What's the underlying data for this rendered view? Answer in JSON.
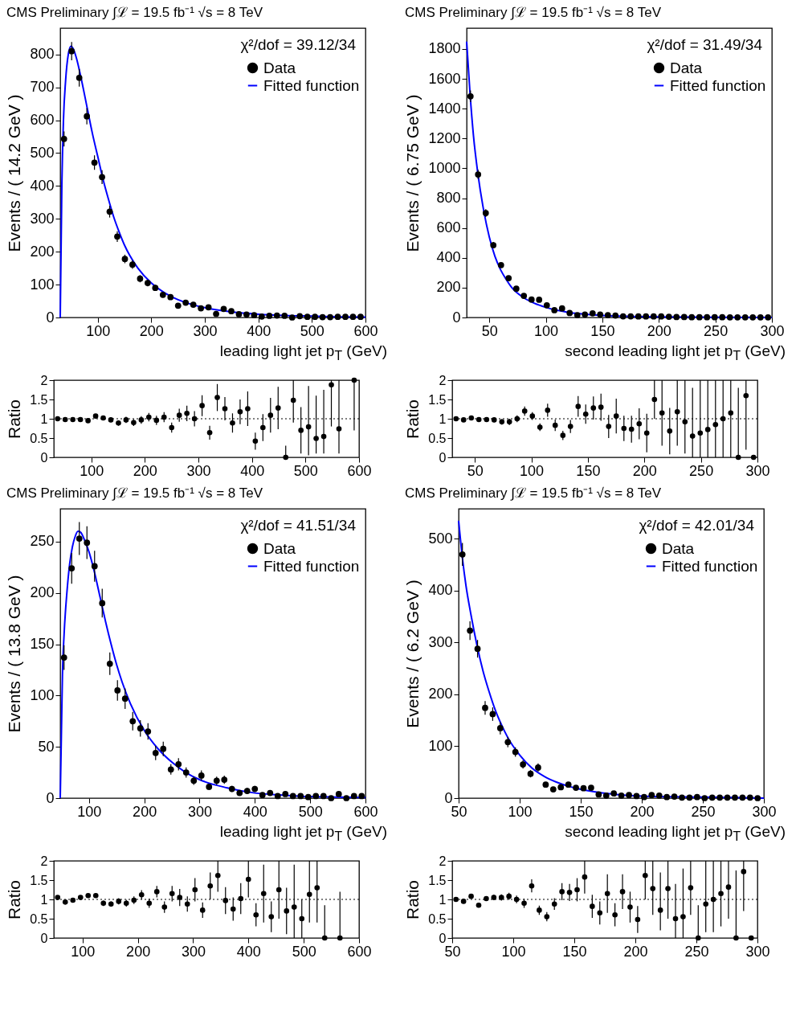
{
  "chart_data": [
    {
      "type": "scatter",
      "title": "CMS Preliminary  ∫ℒ = 19.5 fb⁻¹    √s = 8 TeV",
      "xlabel": "leading light jet p$_{T}$ (GeV)",
      "ylabel": "Events / ( 14.2 GeV )",
      "annotations": [
        "χ²/dof = 39.12/34"
      ],
      "legend": "top right",
      "marker": "circle",
      "xlim": [
        30,
        600
      ],
      "xticks": [
        100,
        200,
        300,
        400,
        500,
        600
      ],
      "ylim": [
        0,
        880
      ],
      "yticks": [
        0,
        100,
        200,
        300,
        400,
        500,
        600,
        700,
        800
      ],
      "x": [
        37.1,
        51.3,
        65.5,
        79.7,
        93.9,
        108.1,
        122.3,
        136.5,
        150.7,
        164.9,
        179.1,
        193.3,
        207.5,
        221.7,
        235.9,
        250.1,
        264.3,
        278.5,
        292.7,
        306.9,
        321.1,
        335.3,
        349.5,
        363.7,
        377.9,
        392.1,
        406.3,
        420.5,
        434.7,
        448.9,
        463.1,
        477.3,
        491.5,
        505.7,
        519.9,
        534.1,
        548.3,
        562.5,
        576.7,
        590.9
      ],
      "series": [
        {
          "name": "Data",
          "color": "#000000",
          "values": [
            543,
            810,
            729,
            612,
            471,
            427,
            322,
            246,
            178,
            161,
            118,
            105,
            90,
            69,
            62,
            36,
            45,
            39,
            28,
            31,
            11,
            26,
            19,
            10,
            9,
            7,
            3,
            5,
            6,
            5,
            0,
            4,
            2,
            2,
            1,
            1,
            2,
            2,
            2,
            2
          ],
          "errors": [
            23,
            28,
            27,
            25,
            22,
            21,
            18,
            16,
            13,
            13,
            11,
            10,
            9,
            8,
            8,
            6,
            7,
            6,
            5,
            6,
            3,
            5,
            4,
            3,
            3,
            3,
            null,
            null,
            null,
            null,
            null,
            null,
            null,
            null,
            null,
            null,
            null,
            null,
            null,
            null
          ]
        },
        {
          "name": "Fitted function",
          "type": "line",
          "color": "#0000ff",
          "marker": "none",
          "x": [
            30,
            33,
            36,
            40,
            45,
            50,
            55,
            60,
            70,
            80,
            90,
            100,
            110,
            120,
            130,
            140,
            150,
            160,
            175,
            200,
            225,
            250,
            275,
            300,
            350,
            400,
            450,
            500,
            550,
            600
          ],
          "values": [
            0,
            400,
            600,
            720,
            800,
            825,
            815,
            790,
            720,
            640,
            560,
            490,
            420,
            360,
            305,
            260,
            220,
            188,
            150,
            105,
            75,
            54,
            40,
            30,
            17,
            10,
            6,
            4,
            2,
            1
          ]
        }
      ]
    },
    {
      "type": "scatter",
      "title": "CMS Preliminary  ∫ℒ = 19.5 fb⁻¹    √s = 8 TeV",
      "xlabel": "second leading light jet p$_{T}$ (GeV)",
      "ylabel": "Events / ( 6.75 GeV )",
      "annotations": [
        "χ²/dof = 31.49/34"
      ],
      "legend": "top right",
      "marker": "circle",
      "xlim": [
        30,
        300
      ],
      "xticks": [
        50,
        100,
        150,
        200,
        250,
        300
      ],
      "ylim": [
        0,
        1940
      ],
      "yticks": [
        0,
        200,
        400,
        600,
        800,
        1000,
        1200,
        1400,
        1600,
        1800
      ],
      "x": [
        33.4,
        40.1,
        46.9,
        53.6,
        60.4,
        67.1,
        73.9,
        80.6,
        87.4,
        94.1,
        100.9,
        107.6,
        114.4,
        121.1,
        127.9,
        134.6,
        141.4,
        148.1,
        154.9,
        161.6,
        168.4,
        175.1,
        181.9,
        188.6,
        195.4,
        202.1,
        208.9,
        215.6,
        222.4,
        229.1,
        235.9,
        242.6,
        249.4,
        256.1,
        262.9,
        269.6,
        276.4,
        283.1,
        289.9,
        296.6
      ],
      "series": [
        {
          "name": "Data",
          "color": "#000000",
          "values": [
            1483,
            959,
            700,
            485,
            351,
            264,
            193,
            145,
            120,
            119,
            82,
            49,
            61,
            30,
            16,
            20,
            28,
            20,
            16,
            13,
            8,
            8,
            7,
            7,
            7,
            7,
            5,
            3,
            3,
            2,
            2,
            2,
            2,
            2,
            1,
            1,
            1,
            1,
            1,
            1
          ],
          "errors": [
            39,
            31,
            26,
            22,
            null,
            null,
            null,
            null,
            null,
            null,
            null,
            null,
            null,
            null,
            null,
            null,
            null,
            null,
            null,
            null,
            null,
            null,
            null,
            null,
            null,
            null,
            null,
            null,
            null,
            null,
            null,
            null,
            null,
            null,
            null,
            null,
            null,
            null,
            null,
            null
          ]
        },
        {
          "name": "Fitted function",
          "type": "line",
          "color": "#0000ff",
          "marker": "none",
          "x": [
            30,
            33,
            36,
            40,
            45,
            50,
            55,
            60,
            65,
            70,
            80,
            90,
            100,
            110,
            120,
            130,
            150,
            175,
            200,
            250,
            300
          ],
          "values": [
            1850,
            1500,
            1220,
            960,
            720,
            540,
            410,
            320,
            255,
            200,
            135,
            95,
            68,
            48,
            34,
            25,
            13,
            7,
            4,
            2,
            0
          ]
        }
      ]
    },
    {
      "type": "scatter",
      "ylabel": "Ratio",
      "xlim": [
        30,
        600
      ],
      "xticks": [
        100,
        200,
        300,
        400,
        500,
        600
      ],
      "ylim": [
        0,
        2
      ],
      "yticks": [
        0,
        0.5,
        1,
        1.5,
        2
      ],
      "ref_lines": [
        {
          "axis": "y",
          "value": 1,
          "line_style": "dotted",
          "color": "#000000"
        }
      ],
      "x": [
        37.1,
        51.3,
        65.5,
        79.7,
        93.9,
        108.1,
        122.3,
        136.5,
        150.7,
        164.9,
        179.1,
        193.3,
        207.5,
        221.7,
        235.9,
        250.1,
        264.3,
        278.5,
        292.7,
        306.9,
        321.1,
        335.3,
        349.5,
        363.7,
        377.9,
        392.1,
        406.3,
        420.5,
        434.7,
        448.9,
        463.1,
        477.3,
        491.5,
        505.7,
        519.9,
        534.1,
        548.3,
        562.5,
        576.7,
        590.9
      ],
      "values": [
        1.0,
        0.98,
        0.98,
        0.98,
        0.95,
        1.07,
        1.02,
        0.97,
        0.89,
        0.97,
        0.9,
        0.97,
        1.04,
        0.96,
        1.04,
        0.77,
        1.09,
        1.14,
        1.0,
        1.34,
        0.64,
        1.55,
        1.26,
        0.89,
        1.18,
        1.26,
        0.42,
        0.77,
        1.09,
        1.28,
        0,
        1.48,
        0.7,
        0.79,
        0.49,
        0.54,
        1.88,
        0.74,
        null,
        2.0
      ],
      "errors": [
        0.04,
        0.03,
        0.03,
        0.04,
        0.04,
        0.05,
        0.05,
        0.06,
        0.07,
        0.08,
        0.09,
        0.1,
        0.11,
        0.12,
        0.13,
        0.13,
        0.17,
        0.2,
        0.2,
        0.27,
        0.18,
        0.35,
        0.3,
        0.25,
        0.32,
        0.45,
        0.22,
        0.35,
        0.45,
        0.55,
        [
          0,
          0.3
        ],
        [
          0.9,
          2
        ],
        0.6,
        [
          0.05,
          1.85
        ],
        [
          0.1,
          1.6
        ],
        [
          0.1,
          1.75
        ],
        [
          0.8,
          2
        ],
        [
          0.1,
          2
        ],
        null,
        [
          0.7,
          2
        ]
      ],
      "color": "#000000"
    },
    {
      "type": "scatter",
      "ylabel": "Ratio",
      "xlim": [
        30,
        300
      ],
      "xticks": [
        50,
        100,
        150,
        200,
        250,
        300
      ],
      "ylim": [
        0,
        2
      ],
      "yticks": [
        0,
        0.5,
        1,
        1.5,
        2
      ],
      "ref_lines": [
        {
          "axis": "y",
          "value": 1,
          "line_style": "dotted",
          "color": "#000000"
        }
      ],
      "x": [
        33.4,
        40.1,
        46.9,
        53.6,
        60.4,
        67.1,
        73.9,
        80.6,
        87.4,
        94.1,
        100.9,
        107.6,
        114.4,
        121.1,
        127.9,
        134.6,
        141.4,
        148.1,
        154.9,
        161.6,
        168.4,
        175.1,
        181.9,
        188.6,
        195.4,
        202.1,
        208.9,
        215.6,
        222.4,
        229.1,
        235.9,
        242.6,
        249.4,
        256.1,
        262.9,
        269.6,
        276.4,
        283.1,
        289.9,
        296.6
      ],
      "values": [
        1.0,
        0.97,
        1.02,
        0.98,
        0.98,
        0.97,
        0.92,
        0.92,
        1.0,
        1.2,
        1.07,
        0.78,
        1.22,
        0.83,
        0.57,
        0.8,
        1.32,
        1.12,
        1.28,
        1.3,
        0.8,
        1.07,
        0.75,
        0.73,
        0.87,
        0.63,
        1.5,
        1.15,
        0.68,
        1.18,
        0.92,
        0.55,
        0.63,
        0.72,
        0.85,
        1.0,
        1.15,
        0,
        1.6,
        0
      ],
      "errors": [
        0.03,
        0.03,
        0.04,
        0.05,
        0.05,
        0.06,
        0.07,
        0.08,
        0.09,
        0.12,
        0.1,
        0.1,
        0.17,
        0.15,
        0.12,
        0.17,
        0.27,
        0.25,
        0.3,
        0.35,
        0.3,
        0.45,
        0.33,
        0.35,
        0.4,
        0.5,
        0.5,
        [
          0.3,
          2
        ],
        0.6,
        [
          0.3,
          2
        ],
        [
          0.1,
          2
        ],
        [
          0,
          1.8
        ],
        [
          0,
          2
        ],
        [
          0,
          2
        ],
        [
          0,
          2
        ],
        [
          0,
          2
        ],
        [
          0,
          2
        ],
        [
          0,
          1.8
        ],
        [
          0.2,
          2
        ],
        null
      ],
      "color": "#000000"
    },
    {
      "type": "scatter",
      "title": "CMS Preliminary  ∫ℒ = 19.5 fb⁻¹    √s = 8 TeV",
      "xlabel": "leading light jet p$_{T}$ (GeV)",
      "ylabel": "Events / ( 13.8 GeV )",
      "annotations": [
        "χ²/dof = 41.51/34"
      ],
      "legend": "top right",
      "marker": "circle",
      "xlim": [
        48,
        600
      ],
      "xticks": [
        100,
        200,
        300,
        400,
        500,
        600
      ],
      "ylim": [
        0,
        282
      ],
      "yticks": [
        0,
        50,
        100,
        150,
        200,
        250
      ],
      "x": [
        54.9,
        68.7,
        82.5,
        96.3,
        110.1,
        123.9,
        137.7,
        151.5,
        165.3,
        179.1,
        192.9,
        206.7,
        220.5,
        234.3,
        248.1,
        261.9,
        275.7,
        289.5,
        303.3,
        317.1,
        330.9,
        344.7,
        358.5,
        372.3,
        386.1,
        399.9,
        413.7,
        427.5,
        441.3,
        455.1,
        468.9,
        482.7,
        496.5,
        510.3,
        524.1,
        537.9,
        551.7,
        565.5,
        579.3,
        593.1
      ],
      "series": [
        {
          "name": "Data",
          "color": "#000000",
          "values": [
            137,
            224,
            253,
            249,
            226,
            190,
            131,
            105,
            97,
            75,
            68,
            65,
            44,
            48,
            28,
            33,
            25,
            17,
            22,
            11,
            17,
            18,
            9,
            5,
            7,
            9,
            3,
            5,
            2,
            4,
            2,
            2,
            1,
            2,
            2,
            0,
            4,
            0,
            2,
            2
          ],
          "errors": [
            12,
            15,
            16,
            16,
            15,
            14,
            11,
            10,
            10,
            9,
            8,
            8,
            7,
            7,
            5,
            6,
            5,
            4,
            5,
            3,
            4,
            4,
            3,
            2,
            3,
            3,
            2,
            2,
            1,
            2,
            1,
            1,
            1,
            1,
            1,
            null,
            2,
            null,
            1,
            1
          ]
        },
        {
          "name": "Fitted function",
          "type": "line",
          "color": "#0000ff",
          "marker": "none",
          "x": [
            48,
            50,
            52,
            55,
            60,
            65,
            70,
            75,
            80,
            85,
            90,
            100,
            110,
            120,
            130,
            140,
            150,
            160,
            175,
            200,
            225,
            250,
            275,
            300,
            350,
            400,
            450,
            500,
            550,
            600
          ],
          "values": [
            0,
            60,
            120,
            160,
            200,
            228,
            245,
            255,
            260,
            259,
            254,
            240,
            220,
            196,
            172,
            150,
            130,
            113,
            92,
            66,
            48,
            35,
            25,
            18,
            10,
            5,
            3,
            1.5,
            1,
            0.5
          ]
        }
      ]
    },
    {
      "type": "scatter",
      "title": "CMS Preliminary  ∫ℒ = 19.5 fb⁻¹    √s = 8 TeV",
      "xlabel": "second leading light jet p$_{T}$ (GeV)",
      "ylabel": "Events / ( 6.2 GeV )",
      "annotations": [
        "χ²/dof = 42.01/34"
      ],
      "legend": "top right",
      "marker": "circle",
      "xlim": [
        50,
        300
      ],
      "xticks": [
        50,
        100,
        150,
        200,
        250,
        300
      ],
      "ylim": [
        0,
        558
      ],
      "yticks": [
        0,
        100,
        200,
        300,
        400,
        500
      ],
      "x": [
        53.1,
        59.3,
        65.5,
        71.7,
        77.9,
        84.1,
        90.3,
        96.5,
        102.7,
        108.9,
        115.1,
        121.3,
        127.5,
        133.7,
        139.9,
        146.1,
        152.3,
        158.5,
        164.7,
        170.9,
        177.1,
        183.3,
        189.5,
        195.7,
        201.9,
        208.1,
        214.3,
        220.5,
        226.7,
        232.9,
        239.1,
        245.3,
        251.5,
        257.7,
        263.9,
        270.1,
        276.3,
        282.5,
        288.7,
        294.9
      ],
      "series": [
        {
          "name": "Data",
          "color": "#000000",
          "values": [
            470,
            323,
            288,
            174,
            162,
            135,
            108,
            89,
            65,
            47,
            59,
            26,
            17,
            21,
            26,
            20,
            19,
            20,
            7,
            5,
            9,
            5,
            6,
            4,
            2,
            6,
            5,
            2,
            3,
            1,
            1,
            2,
            0,
            1,
            1,
            1,
            1,
            1,
            1,
            0
          ],
          "errors": [
            22,
            18,
            17,
            13,
            13,
            12,
            10,
            9,
            8,
            7,
            8,
            null,
            null,
            null,
            null,
            null,
            null,
            null,
            null,
            null,
            null,
            null,
            null,
            null,
            null,
            null,
            null,
            null,
            null,
            null,
            null,
            null,
            null,
            null,
            null,
            null,
            null,
            null,
            null,
            null
          ]
        },
        {
          "name": "Fitted function",
          "type": "line",
          "color": "#0000ff",
          "marker": "none",
          "x": [
            50,
            53,
            56,
            60,
            65,
            70,
            75,
            80,
            85,
            90,
            100,
            110,
            120,
            130,
            140,
            150,
            175,
            200,
            250,
            300
          ],
          "values": [
            535,
            465,
            410,
            355,
            295,
            245,
            205,
            170,
            142,
            118,
            83,
            58,
            42,
            31,
            23,
            17,
            8,
            4,
            2,
            0
          ]
        }
      ]
    },
    {
      "type": "scatter",
      "ylabel": "Ratio",
      "xlim": [
        48,
        600
      ],
      "xticks": [
        100,
        200,
        300,
        400,
        500,
        600
      ],
      "ylim": [
        0,
        2
      ],
      "yticks": [
        0,
        0.5,
        1,
        1.5,
        2
      ],
      "ref_lines": [
        {
          "axis": "y",
          "value": 1,
          "line_style": "dotted",
          "color": "#000000"
        }
      ],
      "x": [
        54.9,
        68.7,
        82.5,
        96.3,
        110.1,
        123.9,
        137.7,
        151.5,
        165.3,
        179.1,
        192.9,
        206.7,
        220.5,
        234.3,
        248.1,
        261.9,
        275.7,
        289.5,
        303.3,
        317.1,
        330.9,
        344.7,
        358.5,
        372.3,
        386.1,
        399.9,
        413.7,
        427.5,
        441.3,
        455.1,
        468.9,
        482.7,
        496.5,
        510.3,
        524.1,
        537.9,
        551.7,
        565.5
      ],
      "values": [
        1.05,
        0.93,
        0.98,
        1.05,
        1.1,
        1.1,
        0.9,
        0.88,
        0.95,
        0.9,
        0.98,
        1.12,
        0.9,
        1.2,
        0.8,
        1.15,
        1.05,
        0.88,
        1.25,
        0.72,
        1.35,
        1.62,
        0.97,
        0.75,
        1.02,
        1.52,
        0.6,
        1.15,
        0.55,
        1.25,
        0.7,
        0.8,
        0.5,
        1.13,
        1.3,
        0,
        null,
        0
      ],
      "errors": [
        0.05,
        0.04,
        0.04,
        0.05,
        0.05,
        0.06,
        0.07,
        0.07,
        0.08,
        0.09,
        0.1,
        0.12,
        0.12,
        0.15,
        0.15,
        0.2,
        0.22,
        0.2,
        0.3,
        0.2,
        0.35,
        [
          1.2,
          2
        ],
        0.35,
        0.3,
        0.4,
        [
          1.05,
          2
        ],
        0.3,
        0.75,
        0.4,
        [
          0.5,
          2
        ],
        0.6,
        [
          0,
          1.9
        ],
        0.5,
        [
          0.4,
          2
        ],
        [
          0.4,
          2
        ],
        [
          0,
          0.85
        ],
        null,
        [
          0,
          1.2
        ]
      ],
      "color": "#000000"
    },
    {
      "type": "scatter",
      "ylabel": "Ratio",
      "xlim": [
        50,
        300
      ],
      "xticks": [
        50,
        100,
        150,
        200,
        250,
        300
      ],
      "ylim": [
        0,
        2
      ],
      "yticks": [
        0,
        0.5,
        1,
        1.5,
        2
      ],
      "ref_lines": [
        {
          "axis": "y",
          "value": 1,
          "line_style": "dotted",
          "color": "#000000"
        }
      ],
      "x": [
        53.1,
        59.3,
        65.5,
        71.7,
        77.9,
        84.1,
        90.3,
        96.5,
        102.7,
        108.9,
        115.1,
        121.3,
        127.5,
        133.7,
        139.9,
        146.1,
        152.3,
        158.5,
        164.7,
        170.9,
        177.1,
        183.3,
        189.5,
        195.7,
        201.9,
        208.1,
        214.3,
        220.5,
        226.7,
        232.9,
        239.1,
        245.3,
        251.5,
        257.7,
        263.9,
        270.1,
        276.3,
        282.5,
        288.7,
        294.9
      ],
      "values": [
        1.0,
        0.95,
        1.08,
        0.85,
        1.02,
        1.05,
        1.05,
        1.08,
        1.0,
        0.9,
        1.35,
        0.72,
        0.55,
        0.88,
        1.2,
        1.18,
        1.25,
        1.58,
        0.82,
        0.65,
        1.15,
        0.6,
        1.2,
        0.8,
        0.48,
        1.62,
        1.28,
        0.72,
        1.28,
        0.5,
        0.55,
        1.3,
        0,
        0.88,
        1.0,
        1.15,
        1.32,
        0,
        1.72,
        0
      ],
      "errors": [
        0.03,
        0.04,
        0.05,
        0.05,
        0.06,
        0.07,
        0.08,
        0.09,
        0.1,
        0.12,
        0.17,
        0.12,
        0.12,
        0.15,
        0.22,
        0.22,
        0.3,
        [
          1.15,
          2
        ],
        0.3,
        0.3,
        0.5,
        0.3,
        0.45,
        0.4,
        0.35,
        [
          1.0,
          2
        ],
        [
          0.6,
          2
        ],
        [
          0.2,
          1.7
        ],
        [
          0.5,
          2
        ],
        [
          0,
          1.4
        ],
        [
          0,
          1.8
        ],
        [
          0.6,
          2
        ],
        [
          0,
          0.85
        ],
        [
          0.15,
          2
        ],
        [
          0.15,
          2
        ],
        [
          0.3,
          2
        ],
        [
          0.5,
          2
        ],
        [
          0,
          1.75
        ],
        [
          0.7,
          2
        ],
        null
      ],
      "color": "#000000"
    }
  ]
}
